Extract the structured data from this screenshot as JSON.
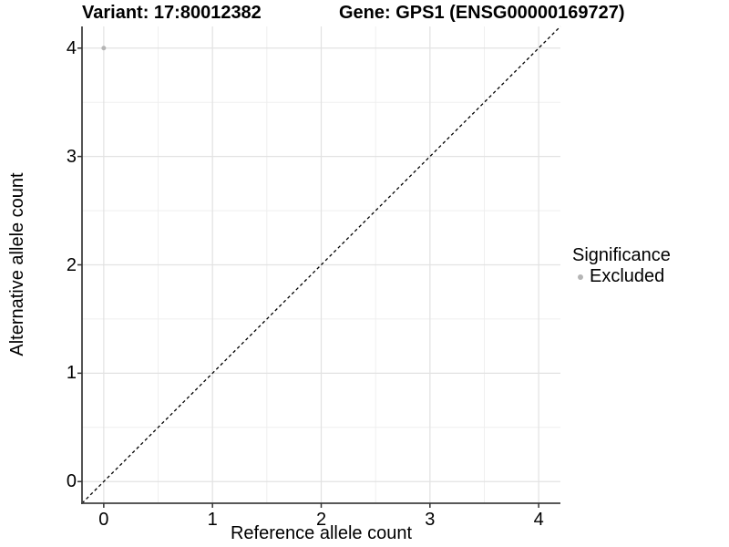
{
  "chart_data": {
    "type": "scatter",
    "title_left": "Variant: 17:80012382",
    "title_right": "Gene: GPS1 (ENSG00000169727)",
    "xlabel": "Reference allele count",
    "ylabel": "Alternative allele count",
    "xlim": [
      -0.2,
      4.2
    ],
    "ylim": [
      -0.2,
      4.2
    ],
    "x_ticks": [
      0,
      1,
      2,
      3,
      4
    ],
    "y_ticks": [
      0,
      1,
      2,
      3,
      4
    ],
    "grid": {
      "major": true,
      "minor": true
    },
    "legend": {
      "title": "Significance",
      "position": "right",
      "entries": [
        {
          "label": "Excluded",
          "color": "#b5b5b5"
        }
      ]
    },
    "series": [
      {
        "name": "Excluded",
        "color": "#b5b5b5",
        "point_radius": 2.5,
        "points": [
          [
            0,
            4
          ]
        ]
      }
    ],
    "identity_line": {
      "style": "dashed",
      "color": "#000000",
      "from": [
        -0.2,
        -0.2
      ],
      "to": [
        4.2,
        4.2
      ]
    }
  },
  "colors": {
    "background": "#ffffff",
    "grid_major": "#e2e2e2",
    "grid_minor": "#efefef",
    "axis_line": "#404040",
    "tick_mark": "#333333",
    "text": "#000000"
  }
}
